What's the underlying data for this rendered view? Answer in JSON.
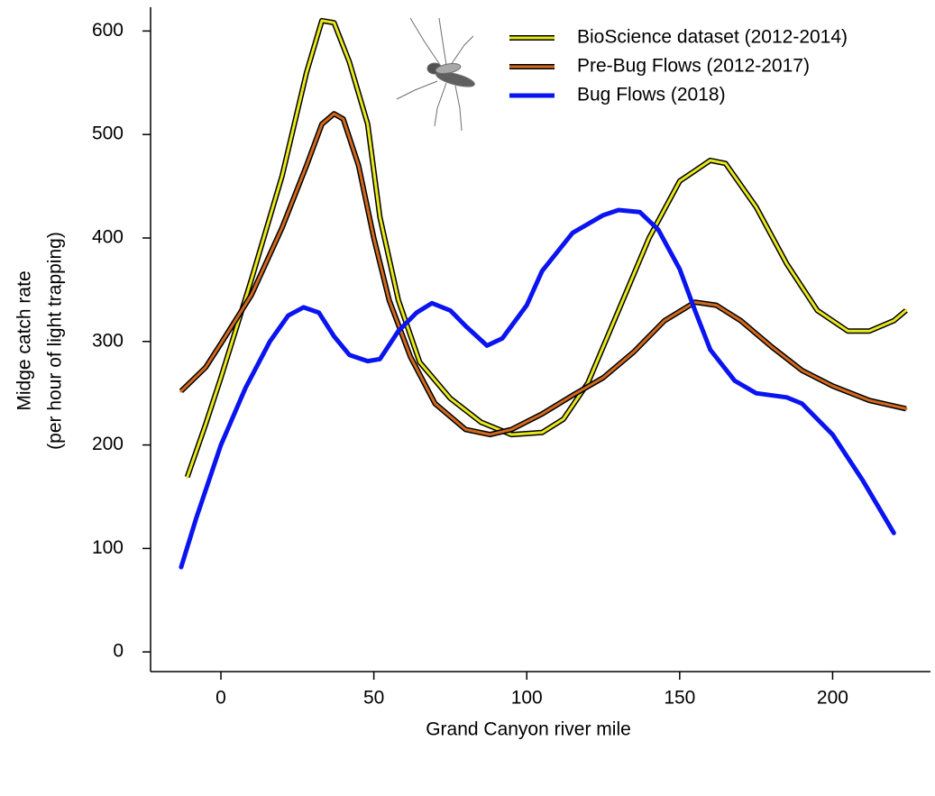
{
  "chart_data": {
    "type": "line",
    "x_label": "Grand Canyon river mile",
    "y_label": [
      "Midge catch rate",
      "(per hour of light trapping)"
    ],
    "xlim": [
      -23,
      232
    ],
    "ylim": [
      -19,
      623
    ],
    "xticks": [
      0,
      50,
      100,
      150,
      200
    ],
    "yticks": [
      0,
      100,
      200,
      300,
      400,
      500,
      600
    ],
    "legend": "top-right",
    "series": [
      {
        "name": "BioScience dataset (2012-2014)",
        "color": "#e8e820",
        "edge_color": "#000000",
        "x": [
          -11,
          -5,
          0,
          10,
          20,
          28,
          33,
          37,
          42,
          48,
          52,
          58,
          65,
          75,
          85,
          95,
          105,
          112,
          120,
          130,
          140,
          150,
          160,
          165,
          175,
          185,
          195,
          205,
          212,
          220,
          224
        ],
        "values": [
          169,
          220,
          265,
          360,
          460,
          560,
          610,
          608,
          570,
          510,
          420,
          340,
          280,
          245,
          222,
          210,
          212,
          225,
          260,
          330,
          400,
          455,
          475,
          472,
          430,
          375,
          330,
          310,
          310,
          320,
          330
        ]
      },
      {
        "name": "Pre-Bug Flows (2012-2017)",
        "color": "#d2691e",
        "edge_color": "#000000",
        "x": [
          -13,
          -5,
          0,
          10,
          20,
          28,
          33,
          37,
          40,
          45,
          50,
          55,
          62,
          70,
          80,
          88,
          95,
          105,
          115,
          125,
          135,
          145,
          155,
          162,
          170,
          180,
          190,
          200,
          212,
          224
        ],
        "values": [
          252,
          275,
          298,
          345,
          410,
          470,
          510,
          520,
          515,
          470,
          400,
          340,
          285,
          240,
          215,
          210,
          215,
          230,
          248,
          265,
          290,
          320,
          338,
          335,
          320,
          295,
          272,
          257,
          243,
          235
        ]
      },
      {
        "name": "Bug Flows (2018)",
        "color": "#0a14f0",
        "x": [
          -13,
          -8,
          0,
          8,
          16,
          22,
          27,
          32,
          37,
          42,
          48,
          52,
          58,
          64,
          69,
          75,
          80,
          87,
          92,
          100,
          105,
          115,
          125,
          130,
          137,
          143,
          150,
          155,
          160,
          168,
          175,
          185,
          190,
          200,
          210,
          220
        ],
        "values": [
          82,
          130,
          200,
          255,
          300,
          325,
          333,
          328,
          305,
          287,
          281,
          283,
          310,
          328,
          337,
          330,
          315,
          296,
          303,
          335,
          368,
          405,
          422,
          427,
          425,
          408,
          370,
          330,
          292,
          262,
          250,
          246,
          240,
          210,
          165,
          115
        ]
      }
    ]
  }
}
